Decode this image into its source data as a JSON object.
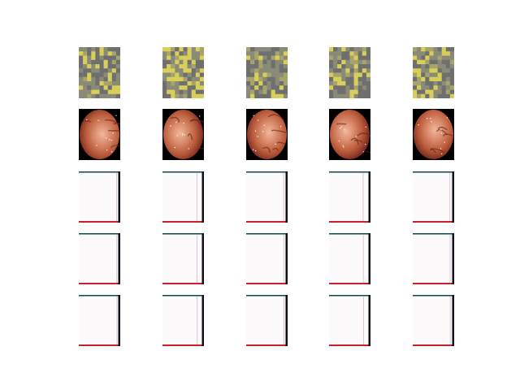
{
  "figure": {
    "rows": [
      {
        "kind": "noise"
      },
      {
        "kind": "endoscopy"
      },
      {
        "kind": "map"
      },
      {
        "kind": "map"
      },
      {
        "kind": "map"
      }
    ],
    "columns": 5,
    "colors": {
      "background": "#ffffff",
      "noise_base": "#8a8a78",
      "noise_gray": "#6f6f6f",
      "noise_yellow": "#d8cf5a",
      "endo_dark": "#000000",
      "tissue_a": "#b85a3a",
      "tissue_b": "#d98a6a",
      "tissue_c": "#7a2a20",
      "map_bg": "#fcfafa",
      "map_top_line": "#0d4a4a",
      "map_bottom_line": "#c8202a",
      "map_right_line": "#101018"
    }
  }
}
